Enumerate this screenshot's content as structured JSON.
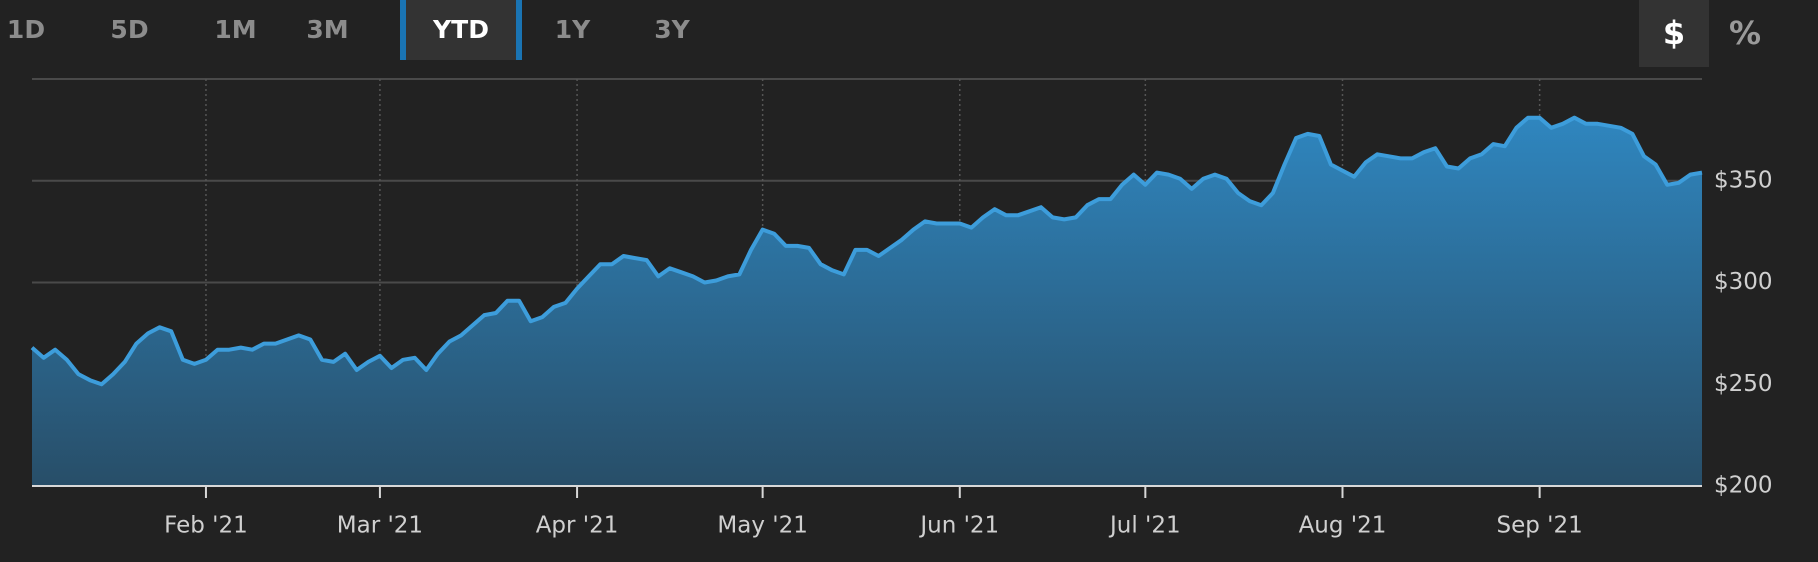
{
  "controls": {
    "ranges": [
      "1D",
      "5D",
      "1M",
      "3M",
      "YTD",
      "1Y",
      "3Y"
    ],
    "selected_range": 4,
    "units": [
      "$",
      "%"
    ],
    "selected_unit": 0
  },
  "chart_data": {
    "type": "area",
    "color": "#3d9ddb",
    "grid": true,
    "ylim": [
      200,
      400
    ],
    "yticks": [
      {
        "value": 200,
        "label": "$200"
      },
      {
        "value": 250,
        "label": "$250"
      },
      {
        "value": 300,
        "label": "$300"
      },
      {
        "value": 350,
        "label": "$350"
      }
    ],
    "categories": [
      null,
      null,
      null,
      null,
      null,
      null,
      null,
      null,
      null,
      null,
      null,
      null,
      null,
      null,
      null,
      "Feb '21",
      null,
      null,
      null,
      null,
      null,
      null,
      null,
      null,
      null,
      null,
      null,
      null,
      null,
      null,
      "Mar '21",
      null,
      null,
      null,
      null,
      null,
      null,
      null,
      null,
      null,
      null,
      null,
      null,
      null,
      null,
      null,
      null,
      "Apr '21",
      null,
      null,
      null,
      null,
      null,
      null,
      null,
      null,
      null,
      null,
      null,
      null,
      null,
      null,
      null,
      "May '21",
      null,
      null,
      null,
      null,
      null,
      null,
      null,
      null,
      null,
      null,
      null,
      null,
      null,
      null,
      null,
      null,
      "Jun '21",
      null,
      null,
      null,
      null,
      null,
      null,
      null,
      null,
      null,
      null,
      null,
      null,
      null,
      null,
      null,
      "Jul '21",
      null,
      null,
      null,
      null,
      null,
      null,
      null,
      null,
      null,
      null,
      null,
      null,
      null,
      null,
      null,
      null,
      "Aug '21",
      null,
      null,
      null,
      null,
      null,
      null,
      null,
      null,
      null,
      null,
      null,
      null,
      null,
      null,
      null,
      null,
      "Sep '21",
      null,
      null,
      null,
      null,
      null,
      null,
      null,
      null,
      null,
      null,
      null,
      null,
      null,
      null
    ],
    "values": [
      268,
      263,
      267,
      262,
      255,
      252,
      250,
      255,
      261,
      270,
      275,
      278,
      276,
      262,
      260,
      262,
      267,
      267,
      268,
      267,
      270,
      270,
      272,
      274,
      272,
      262,
      261,
      265,
      257,
      261,
      264,
      258,
      262,
      263,
      257,
      265,
      271,
      274,
      279,
      284,
      285,
      291,
      291,
      281,
      283,
      288,
      290,
      297,
      303,
      309,
      309,
      313,
      312,
      311,
      303,
      307,
      305,
      303,
      300,
      301,
      303,
      304,
      316,
      326,
      324,
      318,
      318,
      317,
      309,
      306,
      304,
      316,
      316,
      313,
      317,
      321,
      326,
      330,
      329,
      329,
      329,
      327,
      332,
      336,
      333,
      333,
      335,
      337,
      332,
      331,
      332,
      338,
      341,
      341,
      348,
      353,
      348,
      354,
      353,
      351,
      346,
      351,
      353,
      351,
      344,
      340,
      338,
      344,
      358,
      371,
      373,
      372,
      358,
      355,
      352,
      359,
      363,
      362,
      361,
      361,
      364,
      366,
      357,
      356,
      361,
      363,
      368,
      367,
      376,
      381,
      381,
      376,
      378,
      381,
      378,
      378,
      377,
      376,
      373,
      362,
      358,
      348,
      349,
      353,
      354
    ]
  }
}
